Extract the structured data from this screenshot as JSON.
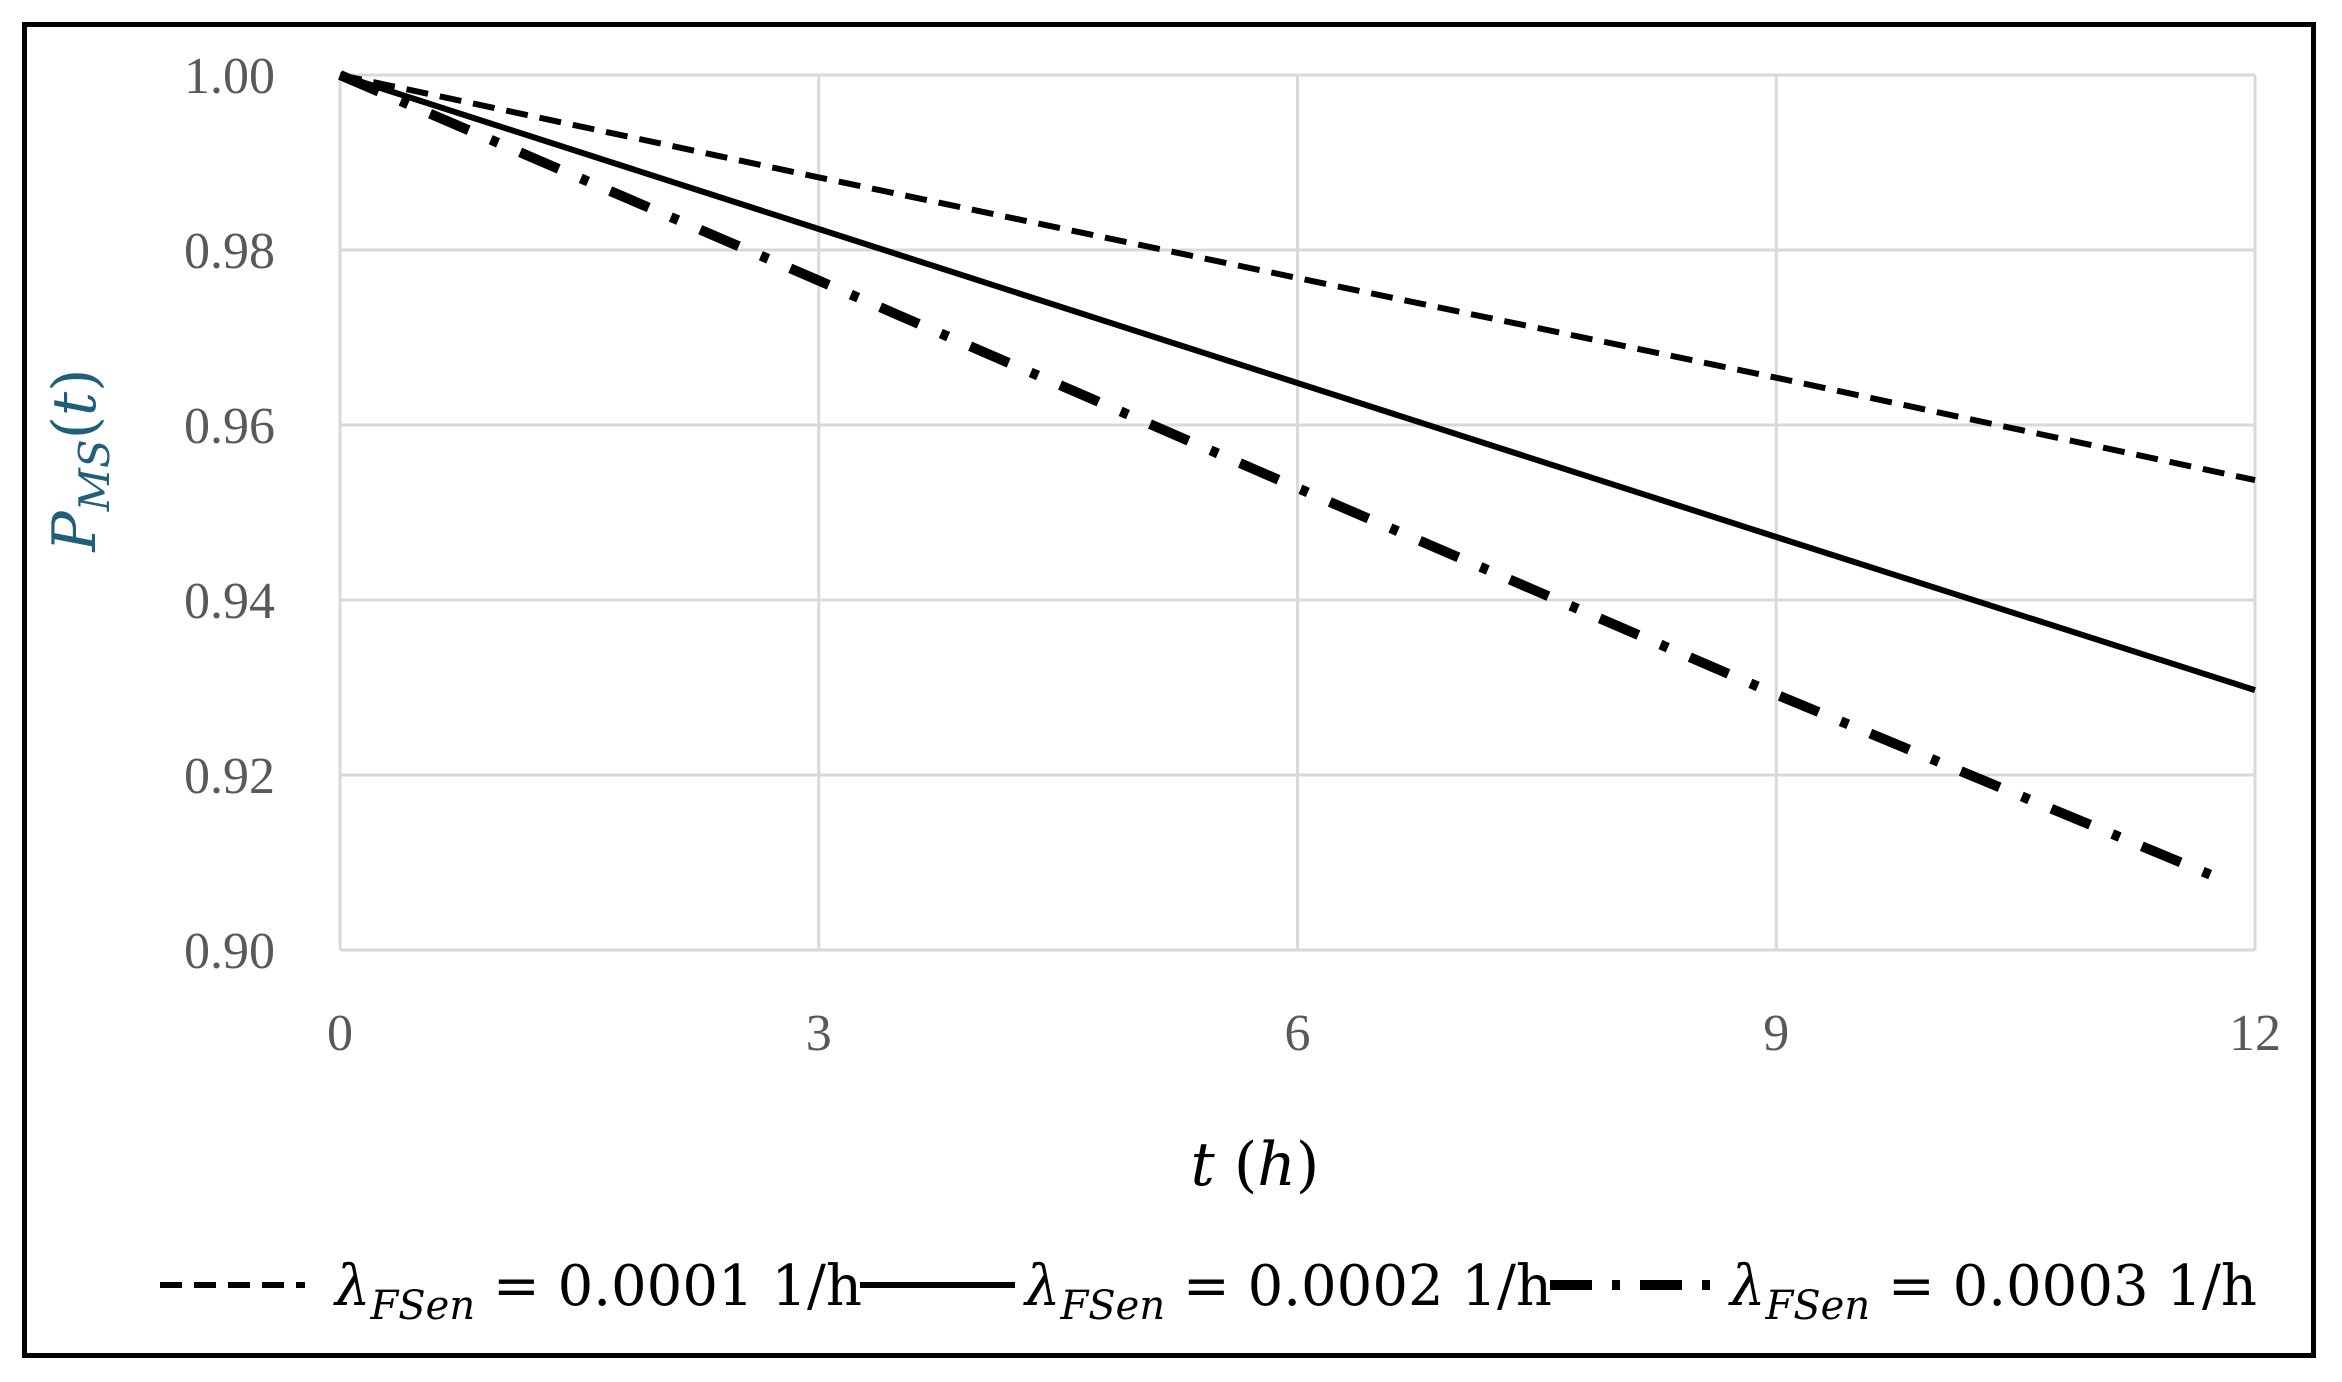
{
  "chart_data": {
    "type": "line",
    "title": "",
    "xlabel": {
      "main": "t",
      "unit": "h"
    },
    "ylabel": {
      "symbol": "P",
      "subscript": "MS",
      "argument": "t"
    },
    "xlim": [
      0,
      12
    ],
    "ylim": [
      0.9,
      1.0
    ],
    "xticks": [
      0,
      3,
      6,
      9,
      12
    ],
    "xtick_labels": [
      "0",
      "3",
      "6",
      "9",
      "12"
    ],
    "yticks": [
      0.9,
      0.92,
      0.94,
      0.96,
      0.98,
      1.0
    ],
    "ytick_labels": [
      "0.90",
      "0.92",
      "0.94",
      "0.96",
      "0.98",
      "1.00"
    ],
    "grid": true,
    "legend_position": "bottom",
    "series": [
      {
        "name": "λFSen = 0.0001 1/h",
        "symbol": "λ",
        "subscript": "FSen",
        "value": "0.0001",
        "unit": "1/h",
        "style": "dashed",
        "color": "#000000",
        "x": [
          0,
          3,
          6,
          9,
          12
        ],
        "y": [
          1.0,
          0.9883,
          0.9768,
          0.9654,
          0.9537
        ]
      },
      {
        "name": "λFSen = 0.0002 1/h",
        "symbol": "λ",
        "subscript": "FSen",
        "value": "0.0002",
        "unit": "1/h",
        "style": "solid",
        "color": "#000000",
        "x": [
          0,
          3,
          6,
          9,
          12
        ],
        "y": [
          1.0,
          0.9824,
          0.9648,
          0.9472,
          0.9297
        ]
      },
      {
        "name": "λFSen = 0.0003 1/h",
        "symbol": "λ",
        "subscript": "FSen",
        "value": "0.0003",
        "unit": "1/h",
        "style": "dash-dot",
        "color": "#000000",
        "x": [
          0,
          3,
          6,
          9,
          11.8
        ],
        "y": [
          1.0,
          0.9765,
          0.9528,
          0.9292,
          0.908
        ]
      }
    ]
  }
}
